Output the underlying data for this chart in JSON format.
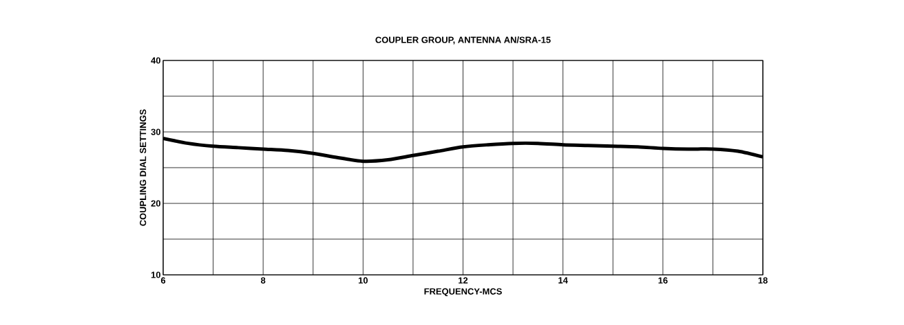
{
  "chart_data": {
    "type": "line",
    "title": "COUPLER GROUP, ANTENNA AN/SRA-15",
    "xlabel": "FREQUENCY-MCS",
    "ylabel": "COUPLING DIAL SETTINGS",
    "x": [
      6,
      6.5,
      7,
      7.5,
      8,
      8.5,
      9,
      9.5,
      10,
      10.5,
      11,
      11.5,
      12,
      12.5,
      13,
      13.5,
      14,
      14.5,
      15,
      15.5,
      16,
      16.5,
      17,
      17.5,
      18
    ],
    "series": [
      {
        "color": "#000000",
        "values": [
          29.1,
          28.4,
          28.0,
          27.8,
          27.6,
          27.4,
          27.0,
          26.4,
          25.9,
          26.1,
          26.7,
          27.3,
          27.9,
          28.2,
          28.4,
          28.4,
          28.2,
          28.1,
          28.0,
          27.9,
          27.7,
          27.6,
          27.6,
          27.3,
          26.5
        ]
      }
    ],
    "xlim": [
      6,
      18
    ],
    "ylim": [
      10,
      40
    ],
    "xticks": [
      6,
      {
        "value": 7,
        "label": null
      },
      8,
      {
        "value": 9,
        "label": null
      },
      10,
      {
        "value": 11,
        "label": null
      },
      12,
      {
        "value": 13,
        "label": null
      },
      14,
      {
        "value": 15,
        "label": null
      },
      16,
      {
        "value": 17,
        "label": null
      },
      18
    ],
    "yticks": [
      10,
      {
        "value": 15,
        "label": null
      },
      20,
      {
        "value": 25,
        "label": null
      },
      30,
      {
        "value": 35,
        "label": null
      },
      40
    ],
    "grid": true,
    "marker": "none",
    "line_style": "solid",
    "legend": false
  }
}
